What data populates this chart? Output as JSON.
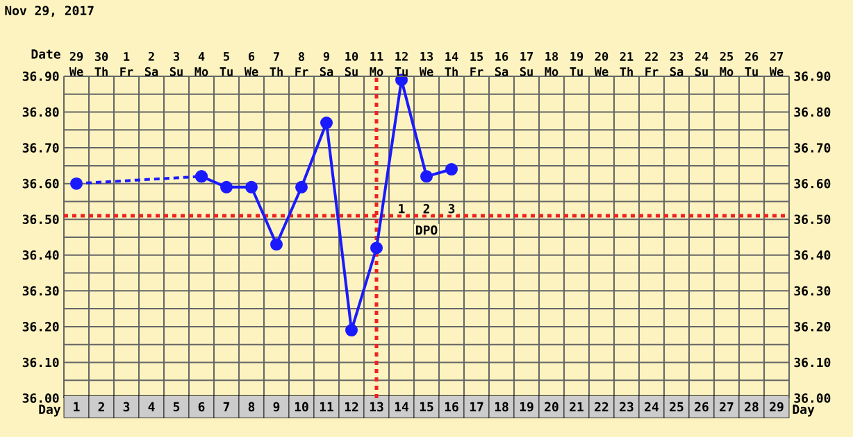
{
  "chart_data": {
    "type": "line",
    "title": "Nov 29, 2017",
    "xlabel": "Day",
    "x2label": "Date",
    "xlim": [
      0.5,
      29.5
    ],
    "xticks": [
      1,
      2,
      3,
      4,
      5,
      6,
      7,
      8,
      9,
      10,
      11,
      12,
      13,
      14,
      15,
      16,
      17,
      18,
      19,
      20,
      21,
      22,
      23,
      24,
      25,
      26,
      27,
      28,
      29
    ],
    "x2lim": [
      "2017-11-28T12:00",
      "2017-12-27T12:00"
    ],
    "x2ticks": [
      {
        "value": "2017-11-29",
        "label": "29 We"
      },
      {
        "value": "2017-11-30",
        "label": "30 Th"
      },
      {
        "value": "2017-12-01",
        "label": "1 Fr"
      },
      {
        "value": "2017-12-02",
        "label": "2 Sa"
      },
      {
        "value": "2017-12-03",
        "label": "3 Su"
      },
      {
        "value": "2017-12-04",
        "label": "4 Mo"
      },
      {
        "value": "2017-12-05",
        "label": "5 Tu"
      },
      {
        "value": "2017-12-06",
        "label": "6 We"
      },
      {
        "value": "2017-12-07",
        "label": "7 Th"
      },
      {
        "value": "2017-12-08",
        "label": "8 Fr"
      },
      {
        "value": "2017-12-09",
        "label": "9 Sa"
      },
      {
        "value": "2017-12-10",
        "label": "10 Su"
      },
      {
        "value": "2017-12-11",
        "label": "11 Mo"
      },
      {
        "value": "2017-12-12",
        "label": "12 Tu"
      },
      {
        "value": "2017-12-13",
        "label": "13 We"
      },
      {
        "value": "2017-12-14",
        "label": "14 Th"
      },
      {
        "value": "2017-12-15",
        "label": "15 Fr"
      },
      {
        "value": "2017-12-16",
        "label": "16 Sa"
      },
      {
        "value": "2017-12-17",
        "label": "17 Su"
      },
      {
        "value": "2017-12-18",
        "label": "18 Mo"
      },
      {
        "value": "2017-12-19",
        "label": "19 Tu"
      },
      {
        "value": "2017-12-20",
        "label": "20 We"
      },
      {
        "value": "2017-12-21",
        "label": "21 Th"
      },
      {
        "value": "2017-12-22",
        "label": "22 Fr"
      },
      {
        "value": "2017-12-23",
        "label": "23 Sa"
      },
      {
        "value": "2017-12-24",
        "label": "24 Su"
      },
      {
        "value": "2017-12-25",
        "label": "25 Mo"
      },
      {
        "value": "2017-12-26",
        "label": "26 Tu"
      },
      {
        "value": "2017-12-27",
        "label": "27 We"
      }
    ],
    "ylim": [
      36.0,
      36.9
    ],
    "yticks": [
      {
        "value": 36.0,
        "label": "36.00"
      },
      {
        "value": 36.1,
        "label": "36.10"
      },
      {
        "value": 36.2,
        "label": "36.20"
      },
      {
        "value": 36.3,
        "label": "36.30"
      },
      {
        "value": 36.4,
        "label": "36.40"
      },
      {
        "value": 36.5,
        "label": "36.50"
      },
      {
        "value": 36.6,
        "label": "36.60"
      },
      {
        "value": 36.7,
        "label": "36.70"
      },
      {
        "value": 36.8,
        "label": "36.80"
      },
      {
        "value": 36.9,
        "label": "36.90"
      }
    ],
    "y2lim": [
      36.0,
      36.9
    ],
    "y2ticks": [
      {
        "value": 36.0,
        "label": "36.00"
      },
      {
        "value": 36.1,
        "label": "36.10"
      },
      {
        "value": 36.2,
        "label": "36.20"
      },
      {
        "value": 36.3,
        "label": "36.30"
      },
      {
        "value": 36.4,
        "label": "36.40"
      },
      {
        "value": 36.5,
        "label": "36.50"
      },
      {
        "value": 36.6,
        "label": "36.60"
      },
      {
        "value": 36.7,
        "label": "36.70"
      },
      {
        "value": 36.8,
        "label": "36.80"
      },
      {
        "value": 36.9,
        "label": "36.90"
      }
    ],
    "series": [
      {
        "color": "#1a1aff",
        "line_style": "dashed",
        "x": [
          1,
          6
        ],
        "values": [
          36.6,
          36.62
        ]
      },
      {
        "color": "#1a1aff",
        "line_style": "solid",
        "x": [
          6,
          7,
          8,
          9,
          10,
          11,
          12,
          13,
          14,
          15,
          16
        ],
        "values": [
          36.62,
          36.59,
          36.59,
          36.43,
          36.59,
          36.77,
          36.19,
          36.42,
          36.89,
          36.62,
          36.64
        ]
      }
    ],
    "marker": "circle",
    "grid": true,
    "ref_lines": [
      {
        "axis": "y",
        "value": 36.51,
        "color": "#ee2222",
        "line_style": "dotted"
      },
      {
        "axis": "x",
        "value": 13,
        "color": "#ee2222",
        "line_style": "dotted"
      }
    ],
    "annotations": [
      {
        "text": "1",
        "x": 14,
        "y": 36.53
      },
      {
        "text": "2",
        "x": 15,
        "y": 36.53
      },
      {
        "text": "3",
        "x": 16,
        "y": 36.53
      },
      {
        "text": "DPO",
        "x": 15,
        "y": 36.47
      }
    ]
  }
}
